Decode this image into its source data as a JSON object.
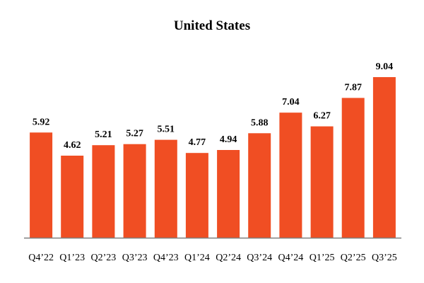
{
  "chart_data": {
    "type": "bar",
    "title": "United States",
    "categories": [
      "Q4’22",
      "Q1’23",
      "Q2’23",
      "Q3’23",
      "Q4’23",
      "Q1’24",
      "Q2’24",
      "Q3’24",
      "Q4’24",
      "Q1’25",
      "Q2’25",
      "Q3’25"
    ],
    "values": [
      5.92,
      4.62,
      5.21,
      5.27,
      5.51,
      4.77,
      4.94,
      5.88,
      7.04,
      6.27,
      7.87,
      9.04
    ],
    "value_labels": [
      "5.92",
      "4.62",
      "5.21",
      "5.27",
      "5.51",
      "4.77",
      "4.94",
      "5.88",
      "7.04",
      "6.27",
      "7.87",
      "9.04"
    ],
    "xlabel": "",
    "ylabel": "",
    "ylim": [
      0,
      9.04
    ],
    "grid": false,
    "colors": {
      "bar": "#F04E23",
      "axis": "#7f7f7f"
    }
  }
}
